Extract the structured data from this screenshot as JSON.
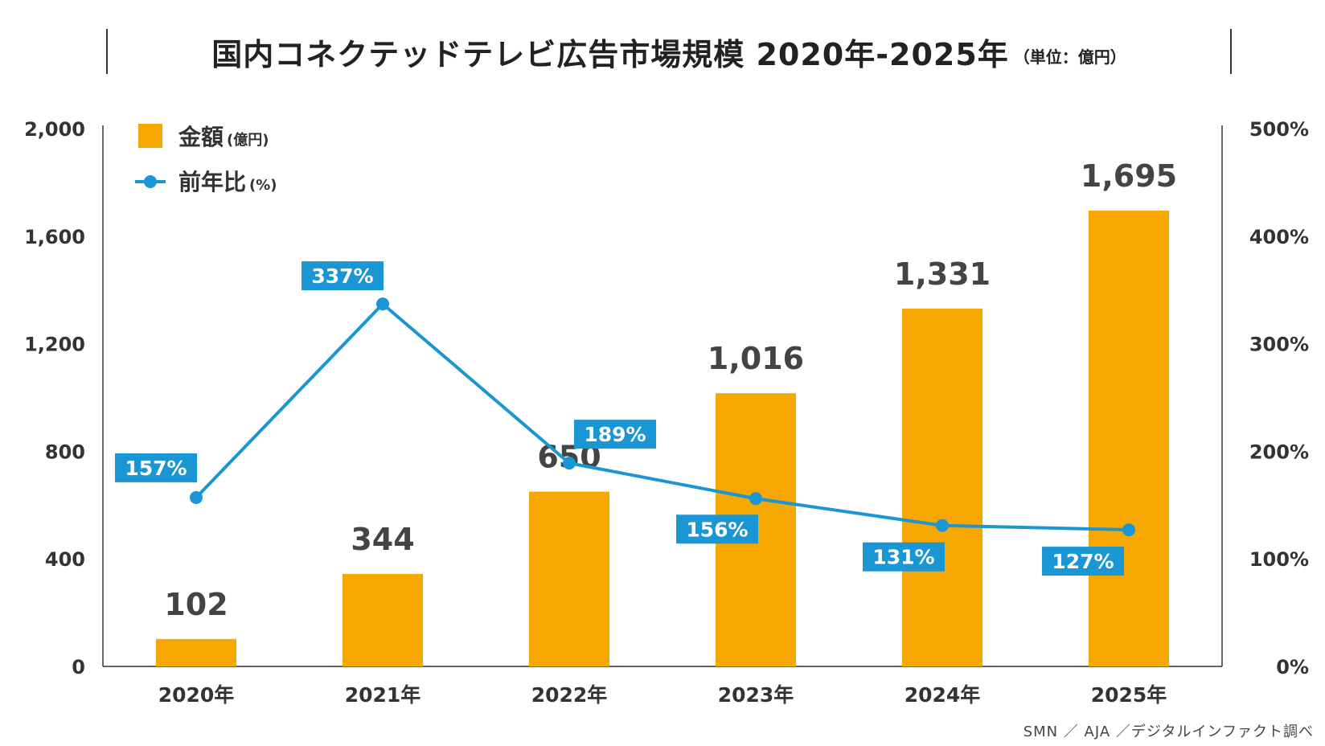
{
  "title": {
    "main": "国内コネクテッドテレビ広告市場規模 2020年-2025年",
    "unit": "（単位：億円）"
  },
  "legend": {
    "bar_label": "金額",
    "bar_unit": "(億円)",
    "line_label": "前年比",
    "line_unit": "(%)"
  },
  "source": "SMN ／ AJA ／デジタルインファクト調べ",
  "colors": {
    "bar": "#F7A800",
    "line": "#1A96D4",
    "label_bg": "#1A96D4",
    "text": "#333333"
  },
  "chart_data": {
    "type": "bar+line",
    "categories": [
      "2020年",
      "2021年",
      "2022年",
      "2023年",
      "2024年",
      "2025年"
    ],
    "series": [
      {
        "name": "金額(億円)",
        "type": "bar",
        "axis": "left",
        "values": [
          102,
          344,
          650,
          1016,
          1331,
          1695
        ],
        "labels": [
          "102",
          "344",
          "650",
          "1,016",
          "1,331",
          "1,695"
        ]
      },
      {
        "name": "前年比(%)",
        "type": "line",
        "axis": "right",
        "values": [
          157,
          337,
          189,
          156,
          131,
          127
        ],
        "labels": [
          "157%",
          "337%",
          "189%",
          "156%",
          "131%",
          "127%"
        ]
      }
    ],
    "y_left": {
      "range": [
        0,
        2000
      ],
      "ticks": [
        0,
        400,
        800,
        1200,
        1600,
        2000
      ],
      "tick_labels": [
        "0",
        "400",
        "800",
        "1,200",
        "1,600",
        "2,000"
      ]
    },
    "y_right": {
      "range": [
        0,
        500
      ],
      "ticks": [
        0,
        100,
        200,
        300,
        400,
        500
      ],
      "tick_labels": [
        "0%",
        "100%",
        "200%",
        "300%",
        "400%",
        "500%"
      ]
    },
    "grid": false
  }
}
